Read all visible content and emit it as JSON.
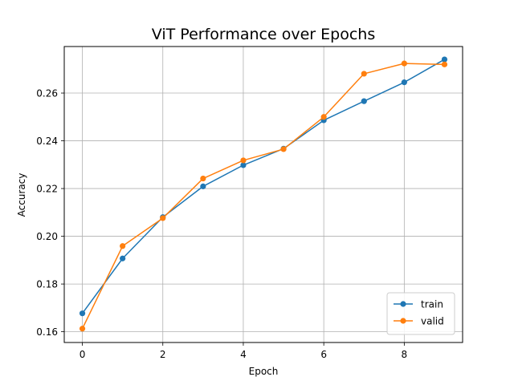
{
  "chart_data": {
    "type": "line",
    "title": "ViT Performance over Epochs",
    "xlabel": "Epoch",
    "ylabel": "Accuracy",
    "x": [
      0,
      1,
      2,
      3,
      4,
      5,
      6,
      7,
      8,
      9
    ],
    "xlim": [
      -0.45,
      9.45
    ],
    "ylim": [
      0.1555,
      0.2795
    ],
    "xticks": [
      0,
      2,
      4,
      6,
      8
    ],
    "xtick_labels": [
      "0",
      "2",
      "4",
      "6",
      "8"
    ],
    "yticks": [
      0.16,
      0.18,
      0.2,
      0.22,
      0.24,
      0.26
    ],
    "ytick_labels": [
      "0.16",
      "0.18",
      "0.20",
      "0.22",
      "0.24",
      "0.26"
    ],
    "grid": true,
    "legend_position": "lower-right",
    "series": [
      {
        "name": "train",
        "color": "#1f77b4",
        "marker": "circle",
        "values": [
          0.1677,
          0.1907,
          0.208,
          0.2209,
          0.2298,
          0.2367,
          0.2486,
          0.2566,
          0.2645,
          0.2741
        ]
      },
      {
        "name": "valid",
        "color": "#ff7f0e",
        "marker": "circle",
        "values": [
          0.1613,
          0.1959,
          0.2076,
          0.2242,
          0.2318,
          0.2365,
          0.25,
          0.2681,
          0.2724,
          0.272
        ]
      }
    ]
  }
}
